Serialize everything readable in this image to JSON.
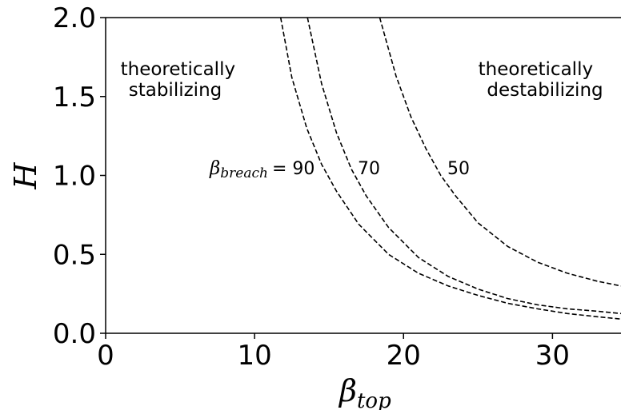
{
  "chart_data": {
    "type": "line",
    "title": "",
    "xlabel": {
      "symbol": "β",
      "subscript": "top"
    },
    "ylabel": "H",
    "xlim": [
      0,
      34.6
    ],
    "ylim": [
      0,
      2.0
    ],
    "grid": false,
    "x_ticks": [
      "0",
      "10",
      "20",
      "30"
    ],
    "y_ticks": [
      "0.0",
      "0.5",
      "1.0",
      "1.5",
      "2.0"
    ],
    "line_style": "dashed",
    "line_color": "#000000",
    "series": [
      {
        "label_text": "= 90",
        "label_prefix_symbol": "β",
        "label_prefix_subscript": "breach",
        "x": [
          11.75,
          12.5,
          13.5,
          14.5,
          15.5,
          17,
          19,
          21,
          23,
          25,
          27,
          29,
          31,
          33,
          34.6
        ],
        "y": [
          2.0,
          1.62,
          1.3,
          1.07,
          0.9,
          0.69,
          0.5,
          0.38,
          0.3,
          0.24,
          0.19,
          0.155,
          0.125,
          0.105,
          0.09
        ]
      },
      {
        "label_text": "70",
        "x": [
          13.55,
          14.5,
          15.5,
          16.5,
          17.5,
          19,
          21,
          23,
          25,
          27,
          29,
          31,
          33,
          34.6
        ],
        "y": [
          2.0,
          1.58,
          1.27,
          1.04,
          0.87,
          0.67,
          0.48,
          0.36,
          0.28,
          0.22,
          0.18,
          0.155,
          0.14,
          0.125
        ]
      },
      {
        "label_text": "50",
        "x": [
          18.4,
          19.5,
          20.5,
          21.5,
          22.5,
          23.5,
          25,
          27,
          29,
          31,
          33,
          34.6
        ],
        "y": [
          2.0,
          1.63,
          1.37,
          1.17,
          1.0,
          0.87,
          0.7,
          0.55,
          0.45,
          0.38,
          0.33,
          0.3
        ]
      }
    ],
    "annotations": [
      {
        "lines": [
          "theoretically",
          "stabilizing"
        ]
      },
      {
        "lines": [
          "theoretically",
          "destabilizing"
        ]
      }
    ]
  }
}
